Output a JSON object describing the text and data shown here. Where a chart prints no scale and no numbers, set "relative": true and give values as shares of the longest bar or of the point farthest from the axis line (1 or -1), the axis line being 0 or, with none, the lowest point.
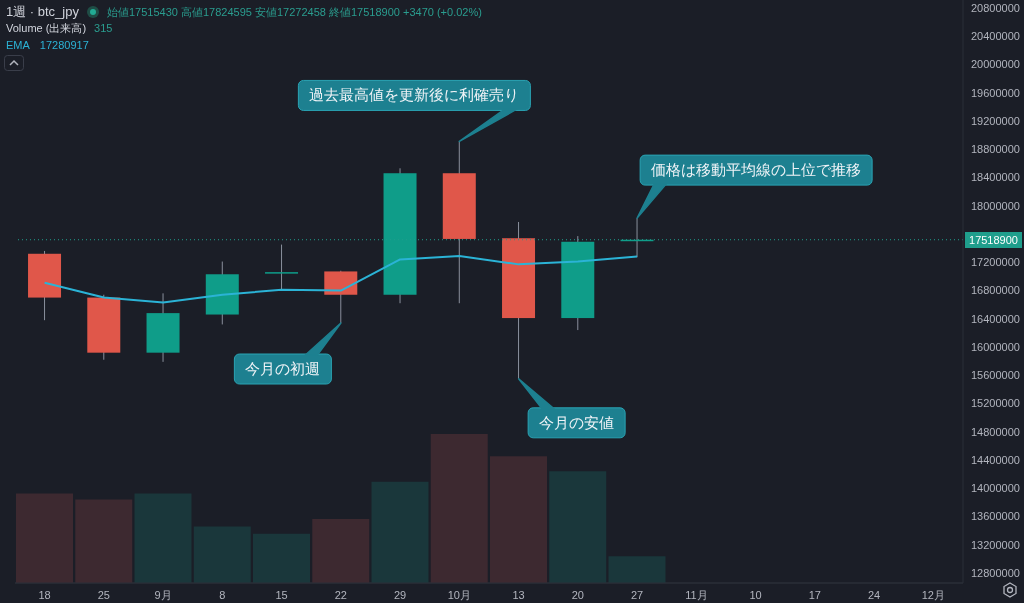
{
  "chart_data": [
    {
      "type": "candlestick",
      "title": "1週 · btc_jpy",
      "subtitle": "始値17515430 高値17824595 安値17272458 終値17518900 +3470 (+0.02%)",
      "categories": [
        "18",
        "25",
        "9月",
        "8",
        "15",
        "22",
        "29",
        "10月",
        "13",
        "20",
        "27",
        "11月",
        "10",
        "17",
        "24",
        "12月"
      ],
      "ohlc": [
        [
          17320000,
          17360000,
          16380000,
          16700000
        ],
        [
          16700000,
          16740000,
          15820000,
          15920000
        ],
        [
          15920000,
          16760000,
          15790000,
          16480000
        ],
        [
          16460000,
          17210000,
          16320000,
          17030000
        ],
        [
          17040000,
          17450000,
          16810000,
          17060000
        ],
        [
          17070000,
          17080000,
          16340000,
          16740000
        ],
        [
          16740000,
          18530000,
          16620000,
          18460000
        ],
        [
          18460000,
          18910000,
          16620000,
          17530000
        ],
        [
          17540000,
          17770000,
          15550000,
          16410000
        ],
        [
          16410000,
          17570000,
          16240000,
          17490000
        ],
        [
          17515430,
          17824595,
          17272458,
          17518900
        ],
        null,
        null,
        null,
        null,
        null
      ],
      "colors": [
        "#e0574a",
        "#e0574a",
        "#0f9d89",
        "#0f9d89",
        "#0f9d89",
        "#e0574a",
        "#0f9d89",
        "#e0574a",
        "#e0574a",
        "#0f9d89",
        "#0f9d89",
        null,
        null,
        null,
        null,
        null
      ],
      "series": [
        {
          "name": "EMA",
          "type": "line",
          "color": "#2bb3d6",
          "values": [
            16910000,
            16700000,
            16630000,
            16740000,
            16810000,
            16800000,
            17240000,
            17290000,
            17170000,
            17210000,
            17280000,
            null,
            null,
            null,
            null,
            null
          ]
        }
      ],
      "ylim": [
        12660000,
        20912000
      ],
      "yticks": [
        12800000,
        13200000,
        13600000,
        14000000,
        14400000,
        14800000,
        15200000,
        15600000,
        16000000,
        16400000,
        16800000,
        17200000,
        18000000,
        18400000,
        18800000,
        19200000,
        19600000,
        20000000,
        20400000,
        20800000
      ],
      "ref_lines": [
        {
          "axis": "y",
          "value": 17518900,
          "label": "17518900",
          "color": "#1f9e8c",
          "line_style": "dotted"
        }
      ],
      "legend": "top left",
      "marker": "none",
      "annotations": [
        "17280917",
        {
          "text": "過去最高値を更新後に利確売り",
          "x": "10月",
          "y": 18910000
        },
        {
          "text": "今月の初週",
          "x": "22",
          "y": 16340000
        },
        {
          "text": "今月の安値",
          "x": "13",
          "y": 15550000
        },
        {
          "text": "価格は移動平均線の上位で推移",
          "x": "27",
          "y": 17824595
        }
      ]
    },
    {
      "type": "bar",
      "relative": true,
      "title": "Volume (出来高)",
      "annotations": [
        "315"
      ],
      "categories": [
        null,
        null,
        null,
        null,
        null,
        null,
        null,
        null,
        null,
        null,
        null,
        null,
        null,
        null,
        null,
        null
      ],
      "values": [
        0.6,
        0.56,
        0.6,
        0.38,
        0.33,
        0.43,
        0.68,
        1,
        0.85,
        0.75,
        0.18,
        null,
        null,
        null,
        null,
        null
      ],
      "colors": [
        "#3d2930",
        "#3d2930",
        "#1a373b",
        "#1a373b",
        "#1a373b",
        "#3d2930",
        "#1a373b",
        "#3d2930",
        "#3d2930",
        "#1a373b",
        "#1a373b",
        null,
        null,
        null,
        null,
        null
      ]
    }
  ]
}
